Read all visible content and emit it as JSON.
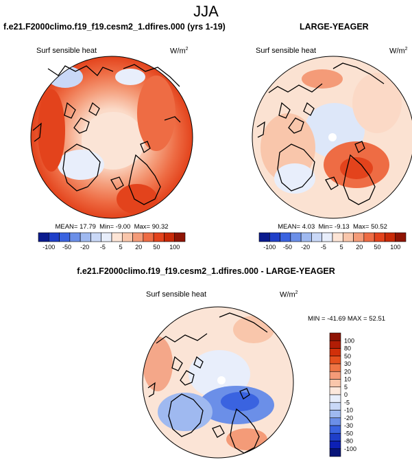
{
  "page": {
    "title": "JJA",
    "left_title": "f.e21.F2000climo.f19_f19.cesm2_1.dfires.000 (yrs 1-19)",
    "right_title": "LARGE-YEAGER",
    "bottom_title": "f.e21.F2000climo.f19_f19.cesm2_1.dfires.000 - LARGE-YEAGER"
  },
  "chart_data": [
    {
      "type": "heatmap",
      "projection": "polar-stereographic-north",
      "title": "f.e21.F2000climo.f19_f19.cesm2_1.dfires.000 (yrs 1-19)",
      "variable": "Surf sensible heat",
      "units": "W/m",
      "units_exp": "2",
      "stats": {
        "mean_label": "MEAN=",
        "mean": "17.79",
        "min_label": "Min=",
        "min": "-9.00",
        "max_label": "Max=",
        "max": "90.32"
      },
      "colorbar": {
        "colors": [
          "#0a1b8e",
          "#1f3fc9",
          "#3a63e0",
          "#6b8fe8",
          "#9fb9f0",
          "#c9d8f7",
          "#e8eefb",
          "#fde5d6",
          "#f9c6ab",
          "#f49b78",
          "#ee6c44",
          "#e3431c",
          "#c92a08",
          "#8f1404"
        ],
        "labels": [
          "-100",
          "-50",
          "-20",
          "-5",
          "5",
          "20",
          "50",
          "100"
        ]
      }
    },
    {
      "type": "heatmap",
      "projection": "polar-stereographic-north",
      "title": "LARGE-YEAGER",
      "variable": "Surf sensible heat",
      "units": "W/m",
      "units_exp": "2",
      "stats": {
        "mean_label": "MEAN=",
        "mean": "4.03",
        "min_label": "Min=",
        "min": "-9.13",
        "max_label": "Max=",
        "max": "50.52"
      },
      "colorbar": {
        "colors": [
          "#0a1b8e",
          "#1f3fc9",
          "#3a63e0",
          "#6b8fe8",
          "#9fb9f0",
          "#c9d8f7",
          "#e8eefb",
          "#fde5d6",
          "#f9c6ab",
          "#f49b78",
          "#ee6c44",
          "#e3431c",
          "#c92a08",
          "#8f1404"
        ],
        "labels": [
          "-100",
          "-50",
          "-20",
          "-5",
          "5",
          "20",
          "50",
          "100"
        ]
      }
    },
    {
      "type": "heatmap",
      "projection": "polar-stereographic-north",
      "title": "f.e21.F2000climo.f19_f19.cesm2_1.dfires.000 - LARGE-YEAGER",
      "variable": "Surf sensible heat",
      "units": "W/m",
      "units_exp": "2",
      "stats": {
        "min_label": "MIN =",
        "min": "-41.69",
        "max_label": "MAX =",
        "max": "52.51"
      },
      "colorbar": {
        "colors": [
          "#8f1404",
          "#b11d05",
          "#d1300a",
          "#e5501e",
          "#ef7545",
          "#f49b78",
          "#f9c6ab",
          "#fde8dc",
          "#e8eefb",
          "#c9d8f7",
          "#9fb9f0",
          "#6b8fe8",
          "#3a63e0",
          "#1f3fc9",
          "#0d20b5",
          "#081479"
        ],
        "labels": [
          "100",
          "80",
          "50",
          "30",
          "20",
          "10",
          "5",
          "0",
          "-5",
          "-10",
          "-20",
          "-30",
          "-50",
          "-80",
          "-100"
        ]
      }
    }
  ]
}
